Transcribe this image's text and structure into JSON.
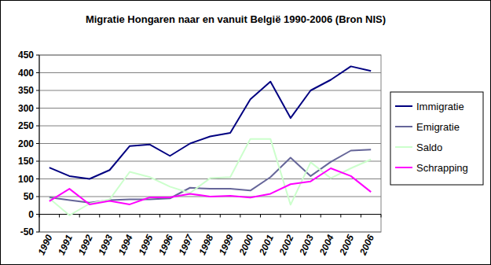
{
  "chart_data": {
    "type": "line",
    "title": "Migratie Hongaren naar en vanuit België 1990-2006 (Bron NIS)",
    "categories": [
      "1990",
      "1991",
      "1992",
      "1993",
      "1994",
      "1995",
      "1996",
      "1997",
      "1998",
      "1999",
      "2000",
      "2001",
      "2002",
      "2003",
      "2004",
      "2005",
      "2006"
    ],
    "series": [
      {
        "name": "Immigratie",
        "color": "#000080",
        "values": [
          132,
          108,
          100,
          125,
          193,
          197,
          165,
          200,
          220,
          230,
          325,
          375,
          272,
          350,
          380,
          418,
          405
        ]
      },
      {
        "name": "Emigratie",
        "color": "#666699",
        "values": [
          48,
          40,
          33,
          40,
          42,
          42,
          45,
          75,
          72,
          72,
          67,
          105,
          160,
          108,
          148,
          180,
          183
        ]
      },
      {
        "name": "Saldo",
        "color": "#ccffcc",
        "values": [
          45,
          -3,
          30,
          42,
          120,
          105,
          78,
          60,
          102,
          105,
          213,
          213,
          27,
          147,
          102,
          130,
          155
        ]
      },
      {
        "name": "Schrapping",
        "color": "#ff00ff",
        "values": [
          37,
          72,
          28,
          38,
          28,
          48,
          48,
          58,
          50,
          52,
          47,
          58,
          85,
          93,
          130,
          108,
          63
        ]
      }
    ],
    "ylim": [
      -50,
      450
    ],
    "yticks": [
      -50,
      0,
      50,
      100,
      150,
      200,
      250,
      300,
      350,
      400,
      450
    ],
    "grid": true,
    "legend": "right"
  }
}
